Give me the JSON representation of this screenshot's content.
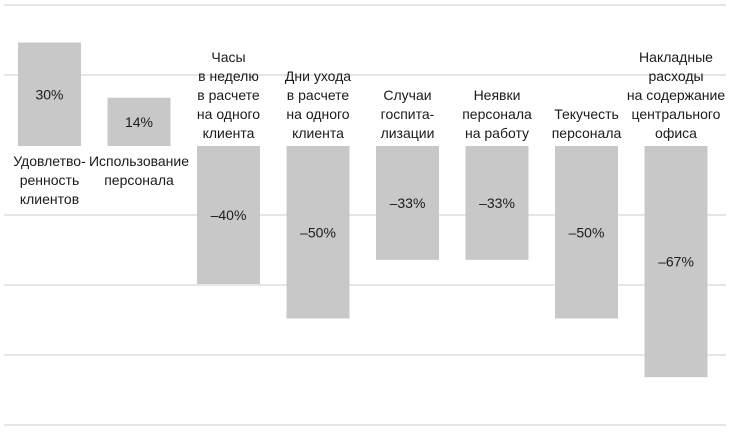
{
  "chart_data": {
    "type": "bar",
    "title": "",
    "xlabel": "",
    "ylabel": "",
    "ylim": [
      -80,
      40
    ],
    "grid": true,
    "categories": [
      [
        "Удовлетво-",
        "ренность",
        "клиентов"
      ],
      [
        "Использование",
        "персонала"
      ],
      [
        "Часы",
        "в неделю",
        "в расчете",
        "на одного",
        "клиента"
      ],
      [
        "Дни ухода",
        "в расчете",
        "на одного",
        "клиента"
      ],
      [
        "Случаи",
        "госпита-",
        "лизации"
      ],
      [
        "Неявки",
        "персонала",
        "на работу"
      ],
      [
        "Текучесть",
        "персонала"
      ],
      [
        "Накладные",
        "расходы",
        "на содержание",
        "центрального",
        "офиса"
      ]
    ],
    "values": [
      30,
      14,
      -40,
      -50,
      -33,
      -33,
      -50,
      -67
    ],
    "data_labels": [
      "30%",
      "14%",
      "–40%",
      "–50%",
      "–33%",
      "–33%",
      "–50%",
      "–67%"
    ],
    "colors": {
      "bar": "#c8c8c8",
      "grid": "#cccccc",
      "text": "#1a1a1a"
    }
  }
}
